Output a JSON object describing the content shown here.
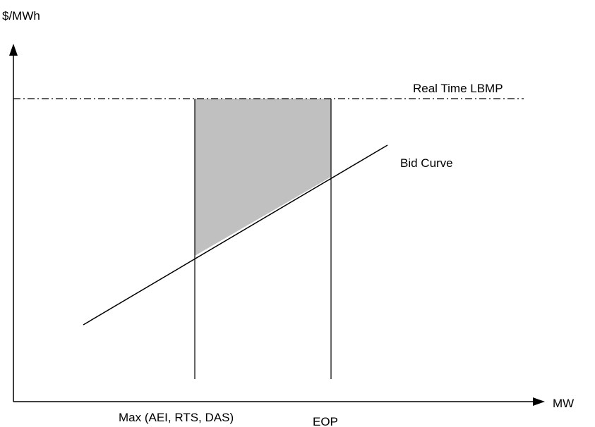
{
  "labels": {
    "y_axis": "$/MWh",
    "x_axis": "MW",
    "real_time_lbmp": "Real Time LBMP",
    "bid_curve": "Bid Curve",
    "left_bound": "Max (AEI, RTS, DAS)",
    "right_bound": "EOP"
  },
  "colors": {
    "line": "#000000",
    "shaded_region": "#c0c0c0",
    "background": "#ffffff"
  },
  "styles": {
    "lbmp_line": "dash-dot",
    "bid_curve_line": "solid",
    "bound_lines": "solid"
  }
}
